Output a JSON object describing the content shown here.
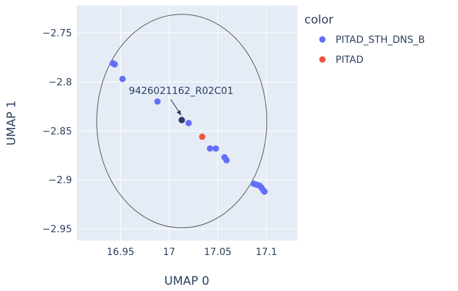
{
  "chart_data": {
    "type": "scatter",
    "xlabel": "UMAP 0",
    "ylabel": "UMAP 1",
    "xlim": [
      16.905,
      17.132
    ],
    "ylim": [
      -2.962,
      -2.722
    ],
    "x_ticks": [
      16.95,
      17,
      17.05,
      17.1
    ],
    "x_tick_labels": [
      "16.95",
      "17",
      "17.05",
      "17.1"
    ],
    "y_ticks": [
      -2.75,
      -2.8,
      -2.85,
      -2.9,
      -2.95
    ],
    "y_tick_labels": [
      "−2.75",
      "−2.8",
      "−2.85",
      "−2.9",
      "−2.95"
    ],
    "grid": true,
    "legend": {
      "title": "color",
      "position": "right"
    },
    "series": [
      {
        "name": "PITAD_STH_DNS_B",
        "color": "#636efa",
        "points": [
          [
            16.942,
            -2.781
          ],
          [
            16.944,
            -2.782
          ],
          [
            16.952,
            -2.797
          ],
          [
            16.988,
            -2.82
          ],
          [
            17.013,
            -2.839
          ],
          [
            17.02,
            -2.842
          ],
          [
            17.042,
            -2.868
          ],
          [
            17.048,
            -2.868
          ],
          [
            17.057,
            -2.877
          ],
          [
            17.059,
            -2.88
          ],
          [
            17.087,
            -2.904
          ],
          [
            17.09,
            -2.905
          ],
          [
            17.093,
            -2.906
          ],
          [
            17.095,
            -2.908
          ],
          [
            17.097,
            -2.911
          ],
          [
            17.098,
            -2.912
          ]
        ]
      },
      {
        "name": "PITAD",
        "color": "#ef553b",
        "points": [
          [
            17.034,
            -2.856
          ]
        ]
      }
    ],
    "highlight": {
      "x": 17.013,
      "y": -2.839,
      "color": "#333a66"
    },
    "annotation": {
      "text": "9426021162_R02C01",
      "x": 17.013,
      "y": -2.839
    },
    "circle": {
      "cx": 17.013,
      "cy": -2.84,
      "rx": 0.0875,
      "ry": 0.109,
      "color": "#555555"
    }
  }
}
